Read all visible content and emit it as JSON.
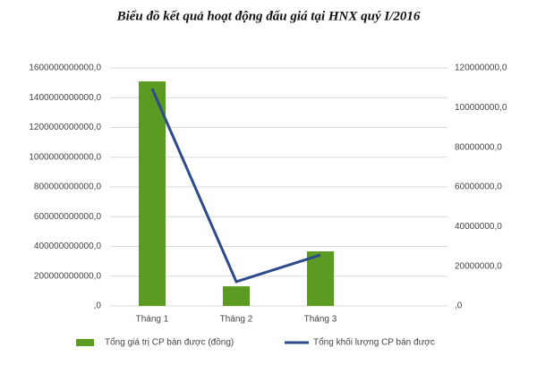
{
  "chart_data": {
    "type": "bar",
    "title": "Biểu đồ kết quả hoạt động đấu giá tại HNX quý I/2016",
    "categories": [
      "Tháng 1",
      "Tháng 2",
      "Tháng 3"
    ],
    "series": [
      {
        "name": "Tổng giá trị CP bán được (đồng)",
        "color": "#5b9b21",
        "values": [
          1510000000000,
          132000000000,
          367000000000
        ]
      },
      {
        "name": "Tổng khối lượng CP bán được",
        "color": "#2e4a8c",
        "type": "line",
        "axis": "y2",
        "values": [
          109600000,
          12200000,
          25700000
        ]
      }
    ],
    "ylim": [
      0,
      1600000000000
    ],
    "yticks": [
      {
        "value": 0,
        "label": ",0"
      },
      {
        "value": 200000000000,
        "label": "200000000000,0"
      },
      {
        "value": 400000000000,
        "label": "400000000000,0"
      },
      {
        "value": 600000000000,
        "label": "600000000000,0"
      },
      {
        "value": 800000000000,
        "label": "800000000000,0"
      },
      {
        "value": 1000000000000,
        "label": "1000000000000,0"
      },
      {
        "value": 1200000000000,
        "label": "1200000000000,0"
      },
      {
        "value": 1400000000000,
        "label": "1400000000000,0"
      },
      {
        "value": 1600000000000,
        "label": "1600000000000,0"
      }
    ],
    "y2lim": [
      0,
      120000000
    ],
    "y2ticks": [
      {
        "value": 0,
        "label": ",0"
      },
      {
        "value": 20000000,
        "label": "20000000,0"
      },
      {
        "value": 40000000,
        "label": "40000000,0"
      },
      {
        "value": 60000000,
        "label": "60000000,0"
      },
      {
        "value": 80000000,
        "label": "80000000,0"
      },
      {
        "value": 100000000,
        "label": "100000000,0"
      },
      {
        "value": 120000000,
        "label": "120000000,0"
      }
    ],
    "grid": true
  }
}
